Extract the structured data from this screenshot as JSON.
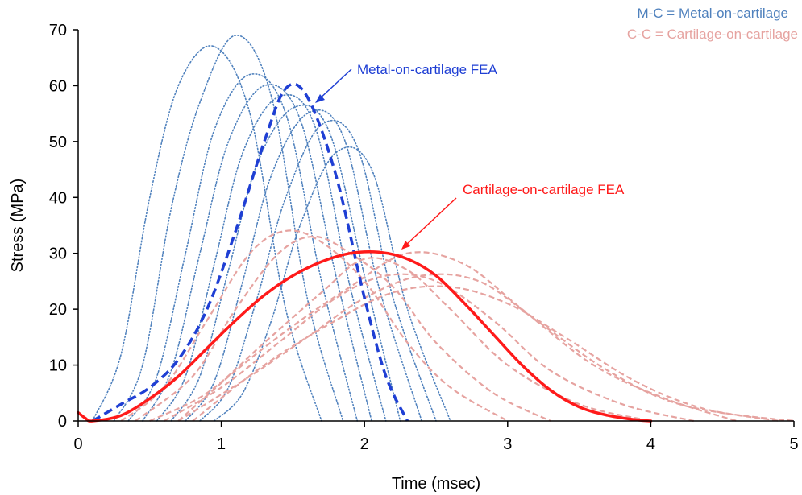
{
  "chart_data": {
    "type": "line",
    "xlabel": "Time (msec)",
    "ylabel": "Stress (MPa)",
    "xlim": [
      0,
      5
    ],
    "ylim": [
      0,
      70
    ],
    "x_ticks": [
      "0",
      "1",
      "2",
      "3",
      "4",
      "5"
    ],
    "y_ticks": [
      "0",
      "10",
      "20",
      "30",
      "40",
      "50",
      "60",
      "70"
    ],
    "grid": false,
    "legend_position": "top-right",
    "legend": [
      {
        "text": "M-C = Metal-on-cartilage",
        "color": "#4f81bd"
      },
      {
        "text": "C-C = Cartilage-on-cartilage",
        "color": "#e6a3a0"
      }
    ],
    "annotations": [
      {
        "text": "Metal-on-cartilage FEA",
        "color": "#1f3fd4",
        "points_to": [
          1.6,
          57
        ]
      },
      {
        "text": "Cartilage-on-cartilage FEA",
        "color": "#ff1a1a",
        "points_to": [
          2.3,
          31
        ]
      }
    ],
    "series": [
      {
        "group": "M-C",
        "kind": "experimental",
        "color": "#4f81bd",
        "style": "dotted",
        "x": [
          0.1,
          0.3,
          0.5,
          0.7,
          0.95,
          1.2,
          1.45,
          1.7
        ],
        "y": [
          0,
          12,
          40,
          60,
          67,
          55,
          20,
          0
        ]
      },
      {
        "group": "M-C",
        "kind": "experimental",
        "color": "#4f81bd",
        "style": "dotted",
        "x": [
          0.25,
          0.45,
          0.65,
          0.85,
          1.1,
          1.35,
          1.6,
          1.85
        ],
        "y": [
          0,
          10,
          38,
          57,
          69,
          58,
          22,
          0
        ]
      },
      {
        "group": "M-C",
        "kind": "experimental",
        "color": "#4f81bd",
        "style": "dotted",
        "x": [
          0.35,
          0.55,
          0.75,
          0.95,
          1.2,
          1.45,
          1.7,
          1.95
        ],
        "y": [
          0,
          8,
          30,
          52,
          62,
          55,
          25,
          0
        ]
      },
      {
        "group": "M-C",
        "kind": "experimental",
        "color": "#4f81bd",
        "style": "dotted",
        "x": [
          0.45,
          0.65,
          0.85,
          1.05,
          1.3,
          1.55,
          1.8,
          2.05
        ],
        "y": [
          0,
          9,
          30,
          50,
          60,
          54,
          26,
          0
        ]
      },
      {
        "group": "M-C",
        "kind": "experimental",
        "color": "#4f81bd",
        "style": "dotted",
        "x": [
          0.55,
          0.75,
          0.95,
          1.15,
          1.4,
          1.65,
          1.9,
          2.15
        ],
        "y": [
          0,
          8,
          28,
          48,
          58,
          53,
          24,
          0
        ]
      },
      {
        "group": "M-C",
        "kind": "experimental",
        "color": "#4f81bd",
        "style": "dotted",
        "x": [
          0.65,
          0.85,
          1.05,
          1.25,
          1.5,
          1.75,
          2.0,
          2.25
        ],
        "y": [
          0,
          8,
          27,
          46,
          56,
          52,
          26,
          0
        ]
      },
      {
        "group": "M-C",
        "kind": "experimental",
        "color": "#4f81bd",
        "style": "dotted",
        "x": [
          0.75,
          0.95,
          1.15,
          1.35,
          1.6,
          1.85,
          2.1,
          2.4
        ],
        "y": [
          0,
          7,
          25,
          44,
          55,
          51,
          24,
          0
        ]
      },
      {
        "group": "M-C",
        "kind": "experimental",
        "color": "#4f81bd",
        "style": "dotted",
        "x": [
          0.85,
          1.05,
          1.25,
          1.45,
          1.7,
          1.95,
          2.2,
          2.5
        ],
        "y": [
          0,
          6,
          22,
          40,
          53,
          49,
          22,
          0
        ]
      },
      {
        "group": "M-C",
        "kind": "experimental",
        "color": "#4f81bd",
        "style": "dotted",
        "x": [
          0.95,
          1.15,
          1.35,
          1.55,
          1.8,
          2.05,
          2.3,
          2.6
        ],
        "y": [
          0,
          5,
          18,
          35,
          48,
          45,
          20,
          0
        ]
      },
      {
        "group": "C-C",
        "kind": "experimental",
        "color": "#e6a3a0",
        "style": "dashed",
        "x": [
          0.3,
          0.6,
          0.9,
          1.2,
          1.45,
          1.7,
          2.0,
          2.3,
          2.6,
          3.0
        ],
        "y": [
          0,
          6,
          18,
          30,
          34,
          32,
          25,
          14,
          6,
          0
        ]
      },
      {
        "group": "C-C",
        "kind": "experimental",
        "color": "#e6a3a0",
        "style": "dashed",
        "x": [
          0.4,
          0.8,
          1.1,
          1.4,
          1.65,
          1.9,
          2.2,
          2.5,
          2.9,
          3.3
        ],
        "y": [
          0,
          8,
          20,
          30,
          33,
          30,
          24,
          14,
          5,
          0
        ]
      },
      {
        "group": "C-C",
        "kind": "experimental",
        "color": "#e6a3a0",
        "style": "dashed",
        "x": [
          0.5,
          0.9,
          1.3,
          1.7,
          2.0,
          2.3,
          2.6,
          3.0,
          3.5,
          4.0
        ],
        "y": [
          0,
          5,
          14,
          23,
          29,
          27,
          20,
          10,
          3,
          0
        ]
      },
      {
        "group": "C-C",
        "kind": "experimental",
        "color": "#e6a3a0",
        "style": "dashed",
        "x": [
          0.6,
          1.0,
          1.4,
          1.8,
          2.15,
          2.5,
          2.9,
          3.3,
          3.8,
          4.3
        ],
        "y": [
          0,
          6,
          14,
          22,
          26,
          25,
          18,
          9,
          3,
          0
        ]
      },
      {
        "group": "C-C",
        "kind": "experimental",
        "color": "#e6a3a0",
        "style": "dashed",
        "x": [
          0.7,
          1.1,
          1.5,
          1.9,
          2.3,
          2.7,
          3.1,
          3.6,
          4.1,
          4.6
        ],
        "y": [
          0,
          9,
          17,
          24,
          30,
          28,
          20,
          10,
          4,
          0
        ]
      },
      {
        "group": "C-C",
        "kind": "experimental",
        "color": "#e6a3a0",
        "style": "dashed",
        "x": [
          0.7,
          1.2,
          1.6,
          2.0,
          2.4,
          2.8,
          3.2,
          3.7,
          4.2,
          4.9
        ],
        "y": [
          0,
          8,
          15,
          22,
          26,
          25,
          18,
          9,
          3,
          0
        ]
      },
      {
        "group": "C-C",
        "kind": "experimental",
        "color": "#e6a3a0",
        "style": "dashed",
        "x": [
          0.8,
          1.3,
          1.8,
          2.2,
          2.6,
          3.0,
          3.4,
          3.9,
          4.4,
          5.0
        ],
        "y": [
          0,
          10,
          18,
          23,
          24,
          21,
          15,
          7,
          2,
          0
        ]
      },
      {
        "group": "M-C",
        "kind": "FEA",
        "color": "#1f3fd4",
        "style": "dash-thick",
        "x": [
          0.1,
          0.3,
          0.5,
          0.7,
          0.9,
          1.1,
          1.3,
          1.45,
          1.6,
          1.8,
          2.0,
          2.15,
          2.3
        ],
        "y": [
          0,
          3,
          6,
          11,
          20,
          34,
          50,
          59.5,
          58,
          44,
          22,
          8,
          0
        ]
      },
      {
        "group": "C-C",
        "kind": "FEA",
        "color": "#ff1a1a",
        "style": "solid",
        "x": [
          0,
          0.05,
          0.1,
          0.3,
          0.5,
          0.7,
          0.9,
          1.1,
          1.3,
          1.5,
          1.7,
          1.9,
          2.1,
          2.3,
          2.5,
          2.7,
          2.9,
          3.1,
          3.3,
          3.5,
          3.7,
          3.9,
          4.0
        ],
        "y": [
          1.5,
          0.5,
          0,
          1,
          4,
          8,
          13,
          18,
          22.5,
          26,
          28.5,
          30,
          30.2,
          29,
          26,
          21,
          15.5,
          10,
          5.5,
          2.5,
          1,
          0.2,
          0
        ]
      }
    ]
  }
}
